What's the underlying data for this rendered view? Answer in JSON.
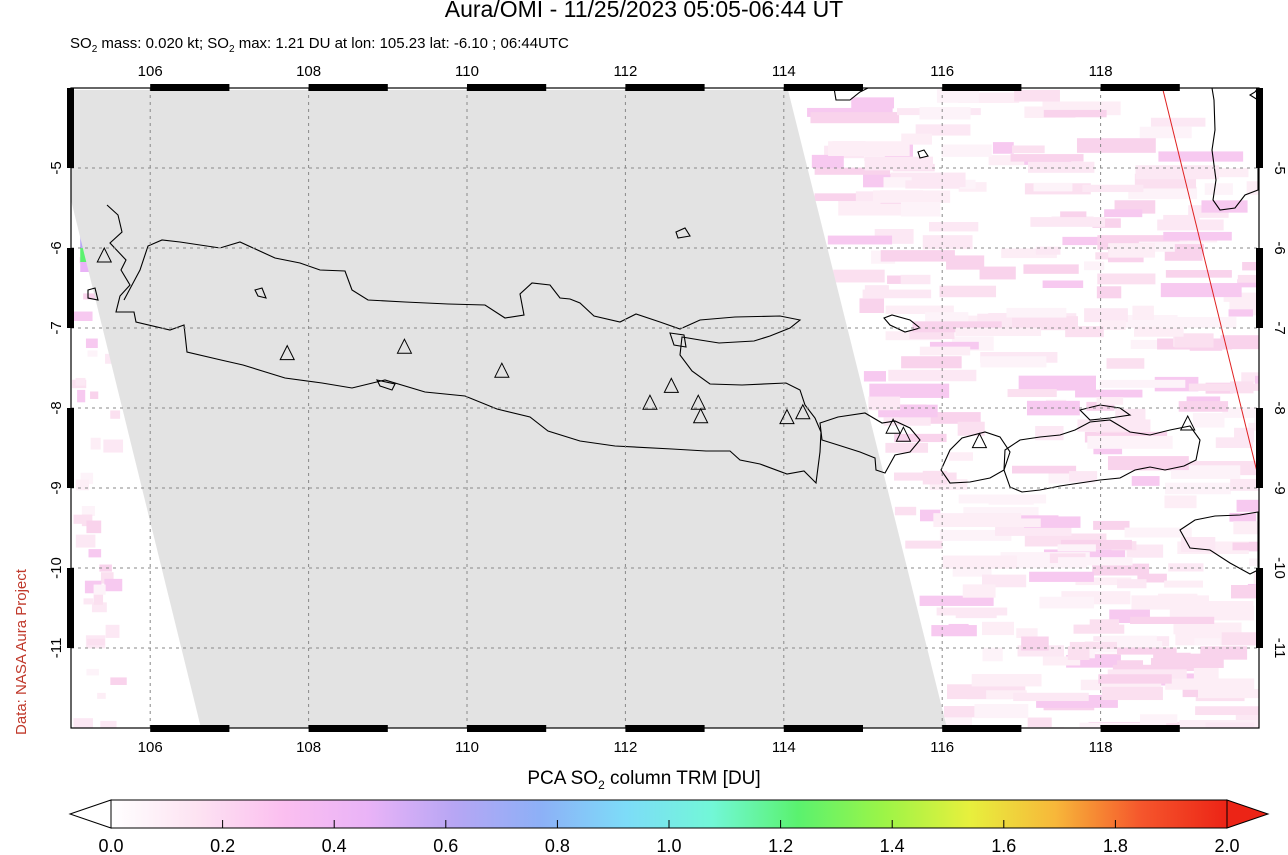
{
  "header": {
    "title": "Aura/OMI - 11/25/2023 05:05-06:44 UT",
    "subtitle_parts": [
      "SO",
      "2",
      " mass: 0.020 kt; SO",
      "2",
      " max: 1.21 DU at lon: 105.23 lat: -6.10 ; 06:44UTC"
    ]
  },
  "credit": "Data: NASA Aura Project",
  "map": {
    "lon_range": [
      105,
      120
    ],
    "lat_range": [
      -12,
      -4
    ],
    "lon_ticks": [
      "106",
      "108",
      "110",
      "112",
      "114",
      "116",
      "118"
    ],
    "lat_ticks": [
      "-5",
      "-6",
      "-7",
      "-8",
      "-9",
      "-10",
      "-11"
    ],
    "gridlines": true,
    "no_data_color": "#e3e3e3",
    "volcano_markers": [
      {
        "lon": 105.42,
        "lat": -6.1
      },
      {
        "lon": 107.73,
        "lat": -7.32
      },
      {
        "lon": 109.21,
        "lat": -7.24
      },
      {
        "lon": 110.44,
        "lat": -7.54
      },
      {
        "lon": 112.31,
        "lat": -7.94
      },
      {
        "lon": 112.58,
        "lat": -7.73
      },
      {
        "lon": 112.92,
        "lat": -7.94
      },
      {
        "lon": 112.95,
        "lat": -8.11
      },
      {
        "lon": 114.04,
        "lat": -8.12
      },
      {
        "lon": 114.24,
        "lat": -8.06
      },
      {
        "lon": 115.38,
        "lat": -8.24
      },
      {
        "lon": 115.51,
        "lat": -8.34
      },
      {
        "lon": 116.47,
        "lat": -8.42
      },
      {
        "lon": 119.1,
        "lat": -8.2
      }
    ]
  },
  "colorbar": {
    "title_parts": [
      "PCA SO",
      "2",
      " column TRM [DU]"
    ],
    "range": [
      0.0,
      2.0
    ],
    "ticks": [
      "0.0",
      "0.2",
      "0.4",
      "0.6",
      "0.8",
      "1.0",
      "1.2",
      "1.4",
      "1.6",
      "1.8",
      "2.0"
    ],
    "colors": [
      "#ffffff",
      "#fde3f2",
      "#fbbff0",
      "#e9b3f7",
      "#b7a6f4",
      "#8db0f7",
      "#7ddcf8",
      "#72f7d7",
      "#5af26f",
      "#9cf447",
      "#e7f03d",
      "#f7b73a",
      "#f5562c",
      "#ec2416"
    ]
  }
}
